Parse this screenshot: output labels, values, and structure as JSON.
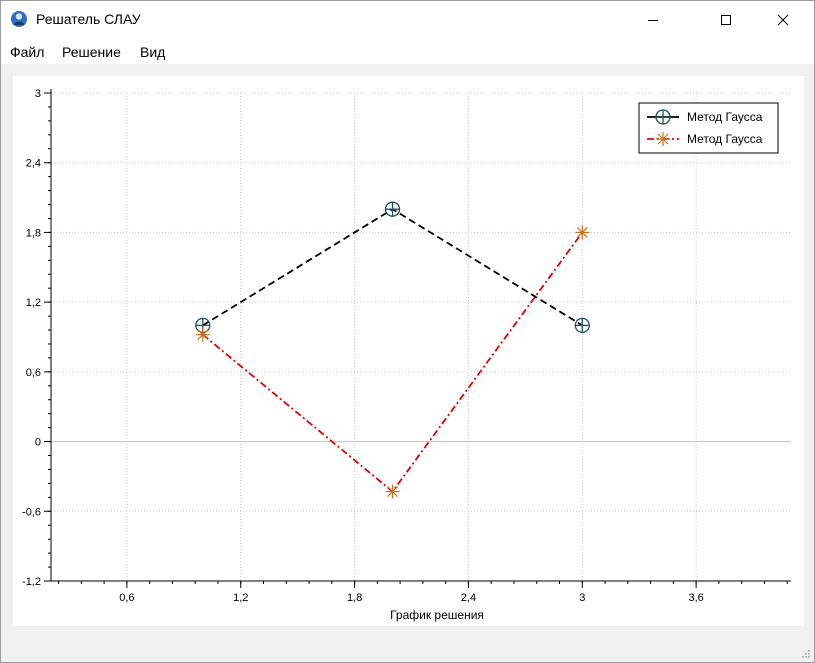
{
  "window": {
    "title": "Решатель СЛАУ",
    "icon": "app-logo-icon",
    "controls": [
      "minimize-icon",
      "maximize-icon",
      "close-icon"
    ]
  },
  "menu": {
    "items": [
      {
        "label": "Файл"
      },
      {
        "label": "Решение"
      },
      {
        "label": "Вид"
      }
    ]
  },
  "chart_data": {
    "type": "line",
    "xlabel": "График решения",
    "ylabel": "",
    "xlim": [
      0.2,
      4.1
    ],
    "ylim": [
      -1.2,
      3.0
    ],
    "x_ticks": [
      "0,6",
      "1,2",
      "1,8",
      "2,4",
      "3",
      "3,6"
    ],
    "x_tick_values": [
      0.6,
      1.2,
      1.8,
      2.4,
      3.0,
      3.6
    ],
    "y_ticks": [
      "3",
      "2,4",
      "1,8",
      "1,2",
      "0,6",
      "0",
      "-0,6",
      "-1,2"
    ],
    "y_tick_values": [
      3.0,
      2.4,
      1.8,
      1.2,
      0.6,
      0.0,
      -0.6,
      -1.2
    ],
    "grid": true,
    "legend_position": "top-right",
    "series": [
      {
        "name": "Метод Гаусса",
        "x": [
          1,
          2,
          3
        ],
        "y": [
          1.0,
          2.0,
          1.0
        ],
        "color": "#000000",
        "marker_color": "#1f4f5f",
        "marker": "circle-cross",
        "line_style": "dashed"
      },
      {
        "name": "Метод Гаусса",
        "x": [
          1,
          2,
          3
        ],
        "y": [
          0.92,
          -0.43,
          1.8
        ],
        "color": "#e00000",
        "marker_color": "#c87020",
        "marker": "star",
        "line_style": "dash-dot"
      }
    ]
  }
}
